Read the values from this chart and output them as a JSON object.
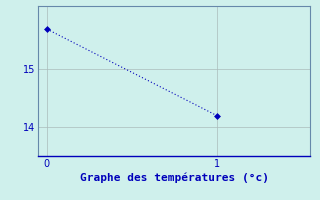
{
  "x": [
    0,
    1
  ],
  "y": [
    15.7,
    14.2
  ],
  "line_color": "#0000bb",
  "marker": "D",
  "marker_size": 3,
  "title": "Graphe des températures (°c)",
  "xlim": [
    -0.05,
    1.55
  ],
  "ylim": [
    13.5,
    16.1
  ],
  "yticks": [
    14,
    15
  ],
  "xticks": [
    0,
    1
  ],
  "background_color": "#cff0ec",
  "grid_color": "#aabbbb",
  "title_color": "#0000bb",
  "title_fontsize": 8,
  "tick_color": "#0000bb",
  "tick_fontsize": 7,
  "spine_color": "#6688aa",
  "spine_linewidth": 0.8
}
